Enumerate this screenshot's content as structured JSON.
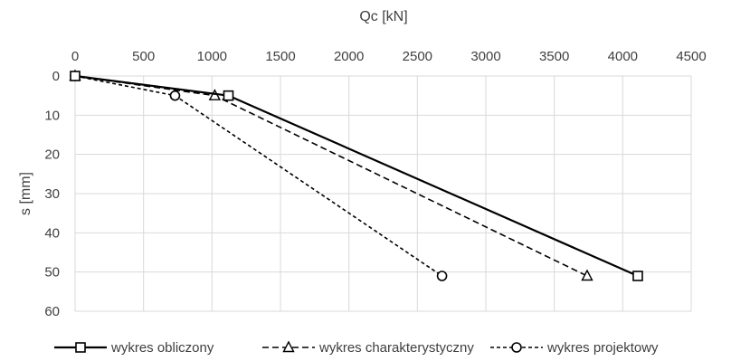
{
  "chart_data": {
    "type": "line",
    "title": "",
    "xlabel": "Qc [kN]",
    "ylabel": "s [mm]",
    "x_axis_position": "top",
    "y_axis_inverted": true,
    "xlim": [
      0,
      4500
    ],
    "ylim": [
      0,
      60
    ],
    "xticks": [
      0,
      500,
      1000,
      1500,
      2000,
      2500,
      3000,
      3500,
      4000,
      4500
    ],
    "yticks": [
      0,
      10,
      20,
      30,
      40,
      50,
      60
    ],
    "grid": true,
    "legend_position": "bottom",
    "series": [
      {
        "name": "wykres obliczony",
        "line_style": "solid",
        "marker": "square",
        "color": "#000000",
        "points": [
          {
            "x": 0,
            "y": 0
          },
          {
            "x": 1120,
            "y": 5
          },
          {
            "x": 4110,
            "y": 51
          }
        ]
      },
      {
        "name": "wykres charakterystyczny",
        "line_style": "dashed",
        "marker": "triangle",
        "color": "#000000",
        "points": [
          {
            "x": 0,
            "y": 0
          },
          {
            "x": 1020,
            "y": 5
          },
          {
            "x": 3740,
            "y": 51
          }
        ]
      },
      {
        "name": "wykres projektowy",
        "line_style": "dotted",
        "marker": "circle",
        "color": "#000000",
        "points": [
          {
            "x": 0,
            "y": 0
          },
          {
            "x": 730,
            "y": 5
          },
          {
            "x": 2680,
            "y": 51
          }
        ]
      }
    ]
  }
}
